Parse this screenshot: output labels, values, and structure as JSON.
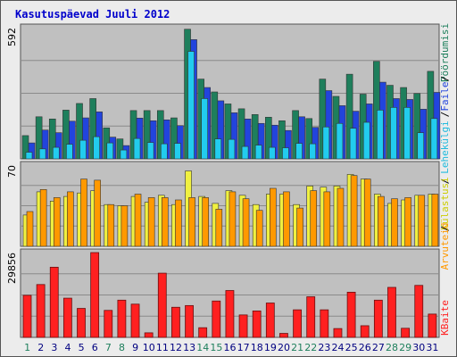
{
  "chart_data": {
    "type": "bar",
    "title": "Kasutuspäevad Juuli 2012",
    "categories": [
      "1",
      "2",
      "3",
      "4",
      "5",
      "6",
      "7",
      "8",
      "9",
      "10",
      "11",
      "12",
      "13",
      "14",
      "15",
      "16",
      "17",
      "18",
      "19",
      "20",
      "21",
      "22",
      "23",
      "24",
      "25",
      "26",
      "27",
      "28",
      "29",
      "30",
      "31"
    ],
    "weekend_days": [
      "1",
      "7",
      "8",
      "14",
      "15",
      "21",
      "22",
      "28",
      "29"
    ],
    "panels": [
      {
        "name": "top",
        "ymax_label": "592",
        "ylim": [
          0,
          592
        ],
        "series": [
          {
            "name": "Pöördumisi",
            "color": "#1e7f5c",
            "values": [
              105,
              190,
              180,
              220,
              250,
              272,
              140,
              90,
              218,
              218,
              218,
              185,
              585,
              360,
              302,
              248,
              226,
              200,
              188,
              172,
              218,
              182,
              360,
              282,
              382,
              292,
              440,
              332,
              322,
              295,
              395
            ]
          },
          {
            "name": "Faile",
            "color": "#2244dd",
            "values": [
              72,
              130,
              118,
              170,
              185,
              212,
              98,
              60,
              184,
              172,
              176,
              150,
              538,
              322,
              262,
              208,
              180,
              160,
              152,
              128,
              190,
              142,
              308,
              240,
              215,
              248,
              346,
              272,
              268,
              224,
              300
            ]
          },
          {
            "name": "Lehekülgi",
            "color": "#22ccee",
            "values": [
              30,
              45,
              52,
              66,
              84,
              100,
              72,
              40,
              92,
              74,
              68,
              70,
              485,
              272,
              90,
              88,
              56,
              62,
              52,
              50,
              70,
              68,
              144,
              160,
              138,
              165,
              220,
              232,
              232,
              118,
              182
            ]
          }
        ]
      },
      {
        "name": "middle",
        "ymax_label": "70",
        "ylim": [
          0,
          70
        ],
        "series": [
          {
            "name": "Külastusi",
            "color": "#f0f040",
            "values": [
              27,
              47,
              39,
              43,
              46,
              48,
              36,
              35,
              43,
              38,
              44,
              36,
              65,
              43,
              37,
              48,
              44,
              36,
              45,
              45,
              36,
              52,
              51,
              52,
              62,
              58,
              45,
              37,
              40,
              44,
              45
            ]
          },
          {
            "name": "Arvuteid",
            "color": "#ff9900",
            "values": [
              30,
              49,
              42,
              47,
              58,
              57,
              36,
              35,
              45,
              42,
              42,
              40,
              42,
              42,
              32,
              47,
              41,
              31,
              50,
              47,
              33,
              48,
              47,
              50,
              61,
              58,
              43,
              41,
              42,
              44,
              45
            ]
          }
        ]
      },
      {
        "name": "bottom",
        "ymax_label": "29856",
        "ylim": [
          0,
          29856
        ],
        "series": [
          {
            "name": "KBaite",
            "color": "#ff2020",
            "values": [
              14800,
              18600,
              24700,
              13800,
              10200,
              29856,
              9500,
              13100,
              11700,
              1600,
              22600,
              10600,
              11200,
              3400,
              12800,
              16500,
              7900,
              9300,
              12100,
              1400,
              9700,
              14300,
              9700,
              3100,
              15900,
              4100,
              13100,
              17600,
              3200,
              18300,
              8200
            ]
          }
        ]
      }
    ],
    "right_axis_labels": [
      "Pöördumisi",
      "Faile",
      "Lehekülgi",
      "Külastusi",
      "Arvuteid",
      "KBaite"
    ],
    "grid": true,
    "legend": "right-vertical"
  }
}
